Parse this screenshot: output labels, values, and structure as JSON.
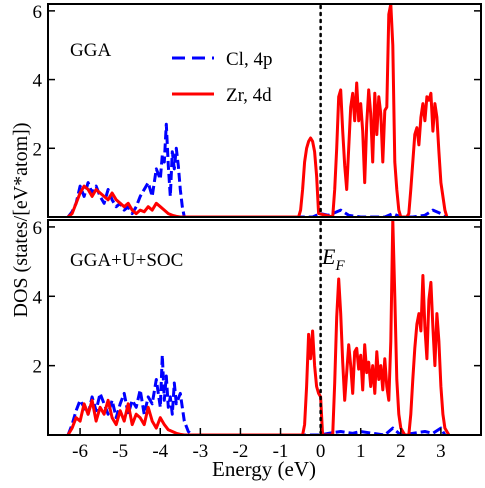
{
  "chart_data": [
    {
      "type": "line",
      "panel_label": "GGA",
      "xlabel": "Energy (eV)",
      "ylabel": "DOS (states/[eV*atom])",
      "xlim": [
        -6.8,
        4.0
      ],
      "ylim": [
        0,
        6.2
      ],
      "yticks": [
        2,
        4,
        6
      ],
      "fermi_level": 0,
      "legend": {
        "placement": "top-center"
      },
      "series": [
        {
          "name": "Cl, 4p",
          "color": "#0000ff",
          "dash": "dashed",
          "x": [
            -6.3,
            -6.2,
            -6.1,
            -6.0,
            -5.9,
            -5.8,
            -5.7,
            -5.6,
            -5.5,
            -5.4,
            -5.3,
            -5.2,
            -5.1,
            -5.0,
            -4.9,
            -4.8,
            -4.7,
            -4.6,
            -4.5,
            -4.4,
            -4.3,
            -4.2,
            -4.1,
            -4.0,
            -3.95,
            -3.9,
            -3.85,
            -3.8,
            -3.75,
            -3.7,
            -3.65,
            -3.6,
            -3.55,
            -3.5,
            -3.45,
            -3.4,
            -3.3,
            -3.0,
            -0.4,
            -0.2,
            -0.1,
            0.0,
            0.2,
            0.5,
            0.7,
            1.0,
            1.3,
            1.6,
            1.8,
            2.0,
            2.3,
            2.6,
            2.8,
            3.0,
            3.1
          ],
          "y": [
            0.0,
            0.15,
            0.4,
            0.9,
            0.6,
            1.0,
            0.7,
            0.9,
            0.6,
            0.4,
            0.8,
            0.5,
            0.3,
            0.4,
            0.2,
            0.3,
            0.1,
            0.3,
            0.6,
            0.8,
            1.0,
            0.6,
            1.4,
            1.1,
            1.8,
            1.6,
            2.7,
            1.5,
            0.6,
            1.9,
            1.4,
            2.0,
            1.5,
            0.8,
            0.3,
            0.0,
            0.0,
            0.0,
            0.0,
            0.0,
            0.05,
            0.1,
            0.05,
            0.2,
            0.05,
            0.0,
            0.0,
            0.0,
            0.1,
            0.0,
            0.0,
            0.05,
            0.2,
            0.1,
            0.0
          ]
        },
        {
          "name": "Zr, 4d",
          "color": "#ff0000",
          "dash": "solid",
          "x": [
            -6.3,
            -6.2,
            -6.1,
            -6.0,
            -5.9,
            -5.8,
            -5.7,
            -5.6,
            -5.5,
            -5.4,
            -5.3,
            -5.2,
            -5.1,
            -5.0,
            -4.9,
            -4.8,
            -4.7,
            -4.6,
            -4.5,
            -4.4,
            -4.3,
            -4.2,
            -4.1,
            -4.0,
            -3.9,
            -3.8,
            -3.7,
            -3.6,
            -3.5,
            -0.55,
            -0.5,
            -0.45,
            -0.4,
            -0.35,
            -0.3,
            -0.25,
            -0.2,
            -0.15,
            -0.1,
            -0.05,
            0.3,
            0.35,
            0.4,
            0.45,
            0.5,
            0.55,
            0.6,
            0.65,
            0.7,
            0.75,
            0.8,
            0.85,
            0.9,
            0.95,
            1.0,
            1.05,
            1.1,
            1.15,
            1.2,
            1.25,
            1.3,
            1.35,
            1.4,
            1.45,
            1.5,
            1.55,
            1.6,
            1.65,
            1.7,
            1.75,
            1.8,
            1.85,
            1.9,
            1.95,
            2.0,
            2.05,
            2.1,
            2.15,
            2.2,
            2.25,
            2.3,
            2.35,
            2.4,
            2.45,
            2.5,
            2.55,
            2.6,
            2.65,
            2.7,
            2.75,
            2.8,
            2.85,
            2.9,
            2.95,
            3.0,
            3.05,
            3.1,
            3.15
          ],
          "y": [
            0.0,
            0.1,
            0.4,
            0.7,
            0.9,
            0.8,
            0.6,
            0.8,
            0.7,
            0.6,
            0.5,
            0.7,
            0.5,
            0.4,
            0.3,
            0.4,
            0.2,
            0.1,
            0.2,
            0.15,
            0.3,
            0.2,
            0.4,
            0.3,
            0.2,
            0.1,
            0.05,
            0.02,
            0.0,
            0.0,
            0.2,
            0.8,
            1.6,
            2.0,
            2.2,
            2.3,
            2.2,
            1.9,
            1.2,
            0.1,
            0.0,
            0.8,
            2.0,
            3.5,
            3.7,
            2.5,
            1.5,
            0.8,
            2.0,
            3.2,
            3.6,
            2.8,
            3.9,
            2.8,
            3.3,
            2.5,
            1.0,
            2.7,
            3.7,
            3.0,
            1.6,
            3.6,
            2.4,
            3.5,
            3.0,
            1.6,
            3.1,
            3.2,
            5.9,
            6.2,
            5.0,
            1.6,
            0.8,
            0.2,
            0.0,
            0.0,
            0.0,
            0.0,
            0.1,
            0.8,
            1.6,
            2.4,
            2.6,
            2.1,
            2.9,
            3.3,
            2.8,
            3.5,
            3.4,
            3.6,
            2.5,
            3.3,
            2.9,
            1.9,
            1.0,
            0.6,
            0.2,
            0.0
          ]
        }
      ]
    },
    {
      "type": "line",
      "panel_label": "GGA+U+SOC",
      "xlabel": "Energy (eV)",
      "ylabel": "DOS (states/[eV*atom])",
      "xlim": [
        -6.8,
        4.0
      ],
      "ylim": [
        0,
        6.2
      ],
      "yticks": [
        2,
        4,
        6
      ],
      "xticks": [
        -6,
        -5,
        -4,
        -3,
        -2,
        -1,
        0,
        1,
        2,
        3
      ],
      "fermi_level": 0,
      "annotation": "E_F",
      "series": [
        {
          "name": "Cl, 4p",
          "color": "#0000ff",
          "dash": "dashed",
          "x": [
            -6.3,
            -6.2,
            -6.1,
            -6.0,
            -5.9,
            -5.8,
            -5.7,
            -5.6,
            -5.5,
            -5.4,
            -5.3,
            -5.2,
            -5.1,
            -5.0,
            -4.9,
            -4.8,
            -4.7,
            -4.6,
            -4.5,
            -4.4,
            -4.3,
            -4.2,
            -4.1,
            -4.0,
            -3.95,
            -3.9,
            -3.85,
            -3.8,
            -3.75,
            -3.7,
            -3.65,
            -3.6,
            -3.5,
            -3.4,
            -3.3,
            -3.2,
            -0.2,
            0.0,
            0.2,
            0.5,
            0.8,
            1.0,
            1.3,
            1.6,
            1.8,
            2.0,
            2.3,
            2.6,
            2.8,
            3.0,
            3.1
          ],
          "y": [
            0.0,
            0.3,
            0.7,
            1.0,
            0.8,
            0.6,
            1.1,
            0.7,
            1.2,
            0.9,
            0.6,
            1.0,
            0.5,
            0.9,
            1.2,
            0.6,
            1.0,
            0.8,
            1.3,
            0.6,
            1.1,
            0.9,
            1.6,
            0.8,
            2.3,
            1.0,
            1.7,
            0.8,
            1.1,
            0.6,
            1.5,
            0.9,
            1.2,
            0.4,
            0.1,
            0.0,
            0.0,
            0.0,
            0.05,
            0.1,
            0.05,
            0.1,
            0.05,
            0.0,
            0.2,
            0.0,
            0.05,
            0.1,
            0.05,
            0.2,
            0.0
          ]
        },
        {
          "name": "Zr, 4d",
          "color": "#ff0000",
          "dash": "solid",
          "x": [
            -6.3,
            -6.2,
            -6.1,
            -6.0,
            -5.9,
            -5.8,
            -5.7,
            -5.6,
            -5.5,
            -5.4,
            -5.3,
            -5.2,
            -5.1,
            -5.0,
            -4.9,
            -4.8,
            -4.7,
            -4.6,
            -4.5,
            -4.4,
            -4.3,
            -4.2,
            -4.1,
            -4.0,
            -3.9,
            -3.8,
            -3.7,
            -3.6,
            -3.5,
            -3.4,
            -0.45,
            -0.4,
            -0.35,
            -0.3,
            -0.25,
            -0.2,
            -0.15,
            -0.1,
            -0.05,
            0.0,
            0.05,
            0.3,
            0.35,
            0.4,
            0.45,
            0.5,
            0.55,
            0.6,
            0.65,
            0.7,
            0.75,
            0.8,
            0.85,
            0.9,
            0.95,
            1.0,
            1.05,
            1.1,
            1.15,
            1.2,
            1.25,
            1.3,
            1.35,
            1.4,
            1.45,
            1.5,
            1.55,
            1.6,
            1.65,
            1.7,
            1.75,
            1.8,
            1.85,
            1.9,
            1.95,
            2.0,
            2.1,
            2.2,
            2.25,
            2.3,
            2.35,
            2.4,
            2.45,
            2.5,
            2.55,
            2.6,
            2.65,
            2.7,
            2.75,
            2.8,
            2.85,
            2.9,
            2.95,
            3.0,
            3.05,
            3.1,
            3.2
          ],
          "y": [
            0.0,
            0.2,
            0.5,
            0.4,
            0.9,
            0.6,
            1.0,
            0.4,
            0.8,
            0.6,
            1.0,
            0.5,
            0.3,
            0.7,
            0.4,
            0.9,
            0.3,
            0.6,
            0.5,
            0.3,
            0.8,
            0.4,
            0.2,
            0.5,
            0.3,
            0.15,
            0.1,
            0.05,
            0.02,
            0.0,
            0.0,
            0.3,
            1.4,
            2.9,
            2.2,
            3.0,
            2.0,
            1.4,
            1.2,
            1.1,
            0.0,
            0.0,
            1.5,
            3.4,
            4.5,
            3.5,
            2.1,
            1.0,
            1.8,
            2.6,
            2.0,
            1.2,
            2.4,
            2.5,
            1.9,
            2.3,
            1.3,
            2.6,
            1.8,
            2.1,
            1.4,
            2.0,
            1.2,
            2.4,
            1.6,
            2.0,
            1.3,
            2.2,
            1.4,
            1.0,
            2.7,
            6.2,
            4.0,
            1.6,
            0.6,
            0.2,
            0.0,
            0.0,
            0.6,
            1.6,
            2.5,
            3.2,
            3.5,
            3.0,
            4.6,
            3.1,
            2.2,
            3.9,
            4.4,
            3.1,
            2.0,
            3.5,
            2.7,
            1.4,
            0.6,
            0.2,
            0.0
          ]
        }
      ]
    }
  ]
}
